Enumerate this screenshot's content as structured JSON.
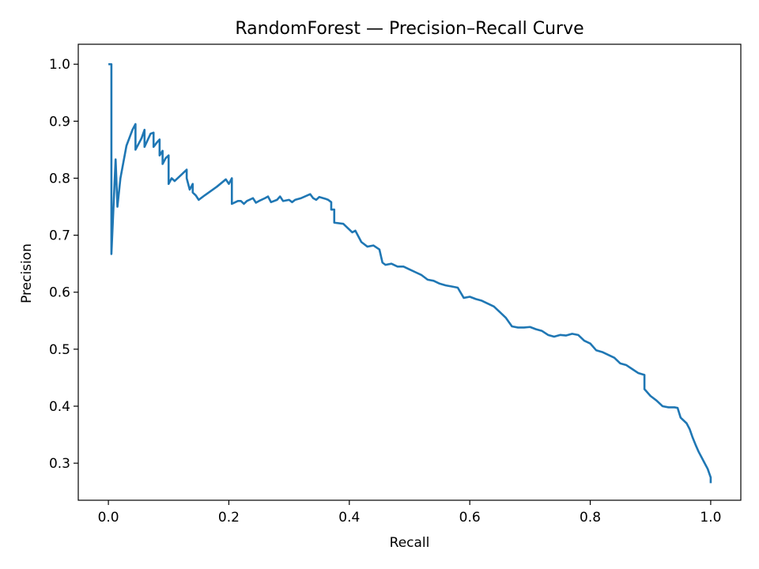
{
  "chart_data": {
    "type": "line",
    "title": "RandomForest — Precision–Recall Curve",
    "xlabel": "Recall",
    "ylabel": "Precision",
    "xlim": [
      -0.05,
      1.05
    ],
    "ylim": [
      0.235,
      1.035
    ],
    "xticks": [
      0.0,
      0.2,
      0.4,
      0.6,
      0.8,
      1.0
    ],
    "xtick_labels": [
      "0.0",
      "0.2",
      "0.4",
      "0.6",
      "0.8",
      "1.0"
    ],
    "yticks": [
      0.3,
      0.4,
      0.5,
      0.6,
      0.7,
      0.8,
      0.9,
      1.0
    ],
    "ytick_labels": [
      "0.3",
      "0.4",
      "0.5",
      "0.6",
      "0.7",
      "0.8",
      "0.9",
      "1.0"
    ],
    "grid": false,
    "legend": "none",
    "line_color": "#1f77b4",
    "series": [
      {
        "x": [
          0.0,
          0.005,
          0.005,
          0.005,
          0.012,
          0.015,
          0.02,
          0.03,
          0.04,
          0.045,
          0.045,
          0.055,
          0.06,
          0.06,
          0.07,
          0.075,
          0.075,
          0.08,
          0.085,
          0.085,
          0.09,
          0.09,
          0.095,
          0.1,
          0.1,
          0.105,
          0.11,
          0.12,
          0.13,
          0.13,
          0.135,
          0.14,
          0.14,
          0.145,
          0.15,
          0.16,
          0.18,
          0.195,
          0.2,
          0.205,
          0.205,
          0.215,
          0.22,
          0.225,
          0.23,
          0.24,
          0.245,
          0.25,
          0.26,
          0.265,
          0.27,
          0.28,
          0.285,
          0.29,
          0.3,
          0.305,
          0.31,
          0.32,
          0.335,
          0.34,
          0.345,
          0.35,
          0.36,
          0.365,
          0.37,
          0.37,
          0.375,
          0.375,
          0.39,
          0.4,
          0.405,
          0.41,
          0.42,
          0.43,
          0.44,
          0.45,
          0.455,
          0.46,
          0.47,
          0.48,
          0.49,
          0.5,
          0.51,
          0.52,
          0.53,
          0.54,
          0.55,
          0.56,
          0.57,
          0.58,
          0.59,
          0.6,
          0.61,
          0.62,
          0.63,
          0.64,
          0.65,
          0.66,
          0.67,
          0.68,
          0.69,
          0.7,
          0.71,
          0.72,
          0.73,
          0.74,
          0.75,
          0.76,
          0.77,
          0.78,
          0.79,
          0.8,
          0.81,
          0.82,
          0.83,
          0.84,
          0.85,
          0.86,
          0.87,
          0.88,
          0.89,
          0.89,
          0.9,
          0.91,
          0.92,
          0.93,
          0.94,
          0.945,
          0.95,
          0.96,
          0.965,
          0.97,
          0.975,
          0.98,
          0.985,
          0.99,
          0.995,
          1.0,
          1.0
        ],
        "y": [
          1.0,
          1.0,
          0.667,
          0.667,
          0.833,
          0.75,
          0.8,
          0.857,
          0.885,
          0.895,
          0.85,
          0.87,
          0.885,
          0.855,
          0.878,
          0.88,
          0.855,
          0.862,
          0.868,
          0.84,
          0.848,
          0.825,
          0.835,
          0.84,
          0.79,
          0.8,
          0.795,
          0.805,
          0.815,
          0.8,
          0.78,
          0.79,
          0.775,
          0.77,
          0.762,
          0.77,
          0.785,
          0.798,
          0.79,
          0.8,
          0.755,
          0.76,
          0.76,
          0.755,
          0.76,
          0.765,
          0.757,
          0.76,
          0.765,
          0.768,
          0.758,
          0.762,
          0.768,
          0.76,
          0.762,
          0.758,
          0.762,
          0.765,
          0.772,
          0.765,
          0.762,
          0.767,
          0.764,
          0.762,
          0.758,
          0.745,
          0.745,
          0.722,
          0.72,
          0.71,
          0.705,
          0.708,
          0.688,
          0.68,
          0.682,
          0.675,
          0.652,
          0.648,
          0.65,
          0.645,
          0.645,
          0.64,
          0.635,
          0.63,
          0.622,
          0.62,
          0.615,
          0.612,
          0.61,
          0.608,
          0.59,
          0.592,
          0.588,
          0.585,
          0.58,
          0.575,
          0.565,
          0.555,
          0.54,
          0.538,
          0.538,
          0.539,
          0.535,
          0.532,
          0.525,
          0.522,
          0.525,
          0.524,
          0.527,
          0.525,
          0.515,
          0.51,
          0.498,
          0.495,
          0.49,
          0.485,
          0.475,
          0.472,
          0.465,
          0.458,
          0.455,
          0.43,
          0.418,
          0.41,
          0.4,
          0.398,
          0.398,
          0.397,
          0.38,
          0.37,
          0.36,
          0.345,
          0.332,
          0.32,
          0.31,
          0.3,
          0.29,
          0.275,
          0.265
        ]
      }
    ]
  }
}
